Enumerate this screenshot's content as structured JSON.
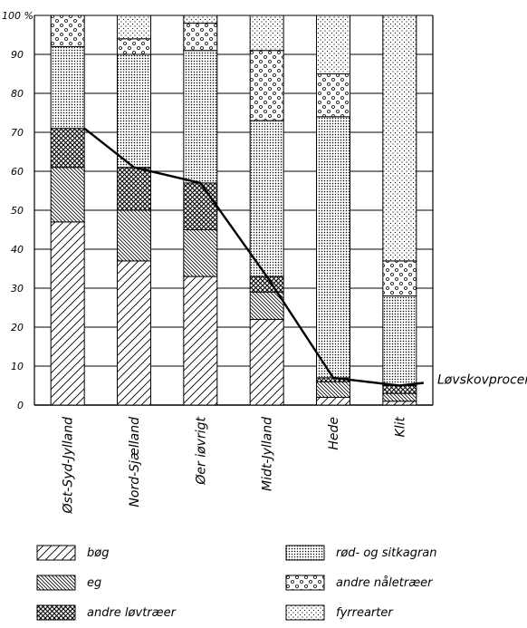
{
  "chart_data": {
    "type": "stacked-bar",
    "categories": [
      "Øst-Syd-Jylland",
      "Nord-Sjælland",
      "Øer iøvrigt",
      "Midt-Jylland",
      "Hede",
      "Klit"
    ],
    "y_ticks": [
      "0",
      "10",
      "20",
      "30",
      "40",
      "50",
      "60",
      "70",
      "80",
      "90",
      "100 %"
    ],
    "ylim": [
      0,
      100
    ],
    "grid": true,
    "series": [
      {
        "name": "bøg",
        "pattern": "diag-wide",
        "values": [
          47,
          37,
          33,
          22,
          2,
          1
        ]
      },
      {
        "name": "eg",
        "pattern": "diag-dense",
        "values": [
          14,
          13,
          12,
          7,
          4,
          2
        ]
      },
      {
        "name": "andre løvtræer",
        "pattern": "crosshatch",
        "values": [
          10,
          11,
          12,
          4,
          1,
          2
        ]
      },
      {
        "name": "rød- og sitkagran",
        "pattern": "dots-dense",
        "values": [
          21,
          29,
          34,
          40,
          67,
          23
        ]
      },
      {
        "name": "andre nåletræer",
        "pattern": "circles",
        "values": [
          8,
          4,
          7,
          18,
          11,
          9
        ]
      },
      {
        "name": "fyrrearter",
        "pattern": "dots-sparse",
        "values": [
          0,
          6,
          2,
          9,
          15,
          63
        ]
      }
    ],
    "line": {
      "label": "Løvskovprocent",
      "values": [
        71,
        61,
        57,
        33,
        7,
        5
      ]
    }
  }
}
